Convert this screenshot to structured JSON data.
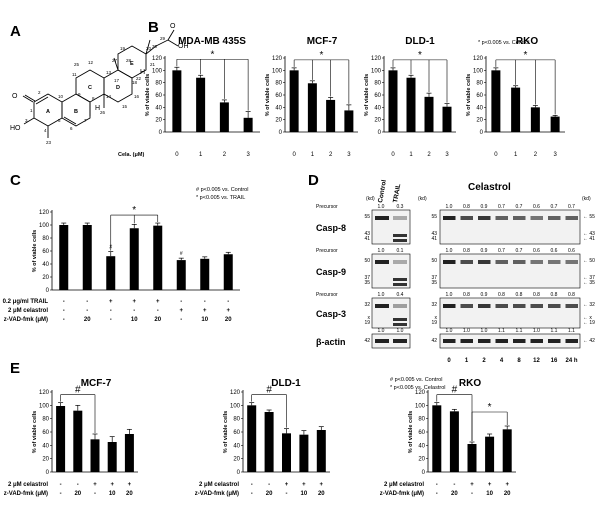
{
  "panels": {
    "a": "A",
    "b": "B",
    "c": "C",
    "d": "D",
    "e": "E"
  },
  "structure": {
    "atoms": [
      "O",
      "OH",
      "HO",
      "O",
      "H",
      "H"
    ],
    "rings": [
      "A",
      "B",
      "C",
      "D",
      "E"
    ],
    "carbons": [
      "1",
      "2",
      "3",
      "4",
      "5",
      "6",
      "7",
      "8",
      "9",
      "10",
      "11",
      "12",
      "13",
      "14",
      "15",
      "16",
      "17",
      "18",
      "19",
      "20",
      "21",
      "22",
      "23",
      "25",
      "26",
      "27",
      "28",
      "29",
      "30"
    ]
  },
  "panel_b": {
    "footnote": "* p<0.005 vs. Control",
    "row_label": "Cela. (μM)",
    "ylabel": "% of viable cells"
  },
  "panel_c": {
    "notes": [
      "# p<0.005 vs. Control",
      "* p<0.005 vs. TRAIL"
    ],
    "ylabel": "% of viable cells",
    "rows": [
      {
        "label": "0.2 μg/ml TRAIL",
        "vals": [
          "-",
          "-",
          "+",
          "+",
          "+",
          "-",
          "-",
          "-"
        ]
      },
      {
        "label": "2 μM celastrol",
        "vals": [
          "-",
          "-",
          "-",
          "-",
          "-",
          "+",
          "+",
          "+"
        ]
      },
      {
        "label": "z-VAD-fmk (μM)",
        "vals": [
          "-",
          "20",
          "-",
          "10",
          "20",
          "-",
          "10",
          "20"
        ]
      }
    ]
  },
  "panel_d": {
    "left_header": [
      "Control",
      "TRAIL"
    ],
    "right_header": "Celastrol",
    "kd": "(kd)",
    "precursor": "Precursor",
    "proteins": [
      {
        "name": "Casp-8",
        "left_q": [
          "1.0",
          "0.3"
        ],
        "right_q": [
          "1.0",
          "0.8",
          "0.9",
          "0.7",
          "0.7",
          "0.6",
          "0.7",
          "0.7"
        ],
        "markers": [
          "55",
          "43",
          "41"
        ]
      },
      {
        "name": "Casp-9",
        "left_q": [
          "1.0",
          "0.1"
        ],
        "right_q": [
          "1.0",
          "0.8",
          "0.9",
          "0.7",
          "0.7",
          "0.6",
          "0.6",
          "0.6"
        ],
        "markers": [
          "50",
          "37",
          "35"
        ]
      },
      {
        "name": "Casp-3",
        "left_q": [
          "1.0",
          "0.4"
        ],
        "right_q": [
          "1.0",
          "0.8",
          "0.9",
          "0.8",
          "0.8",
          "0.8",
          "0.8",
          "0.8"
        ],
        "markers": [
          "32",
          "x",
          "19"
        ]
      },
      {
        "name": "β-actin",
        "left_q": [
          "1.0",
          "1.0"
        ],
        "right_q": [
          "1.0",
          "1.0",
          "1.0",
          "1.1",
          "1.1",
          "1.0",
          "1.1",
          "1.1"
        ],
        "markers": [
          "42"
        ]
      }
    ],
    "timepoints": [
      "0",
      "1",
      "2",
      "4",
      "8",
      "12",
      "16",
      "24 h"
    ]
  },
  "panel_e": {
    "rows": [
      {
        "label": "2 μM celastrol",
        "vals": [
          "-",
          "-",
          "+",
          "+",
          "+"
        ]
      },
      {
        "label": "z-VAD-fmk (μM)",
        "vals": [
          "-",
          "20",
          "-",
          "10",
          "20"
        ]
      }
    ],
    "rko_notes": [
      "# p<0.005 vs. Control",
      "* p<0.005 vs. Celastrol"
    ],
    "ylabel": "% of viable cells"
  },
  "chart_data": [
    {
      "id": "b1",
      "type": "bar",
      "title": "MDA-MB 435S",
      "xlabel": "Cela. (μM)",
      "ylabel": "% of viable cells",
      "categories": [
        "0",
        "1",
        "2",
        "3"
      ],
      "values": [
        100,
        88,
        48,
        23
      ],
      "errors": [
        5,
        4,
        4,
        10
      ],
      "ylim": [
        0,
        120
      ],
      "yticks": [
        0,
        20,
        40,
        60,
        80,
        100,
        120
      ],
      "sig": [
        {
          "mark": "*",
          "from": 0,
          "to": [
            1,
            2,
            3
          ]
        }
      ]
    },
    {
      "id": "b2",
      "type": "bar",
      "title": "MCF-7",
      "xlabel": "Cela. (μM)",
      "ylabel": "% of viable cells",
      "categories": [
        "0",
        "1",
        "2",
        "3"
      ],
      "values": [
        100,
        79,
        52,
        35
      ],
      "errors": [
        4,
        4,
        4,
        9
      ],
      "ylim": [
        0,
        120
      ],
      "yticks": [
        0,
        20,
        40,
        60,
        80,
        100,
        120
      ],
      "sig": [
        {
          "mark": "*",
          "from": 0,
          "to": [
            1,
            2,
            3
          ]
        }
      ]
    },
    {
      "id": "b3",
      "type": "bar",
      "title": "DLD-1",
      "xlabel": "Cela. (μM)",
      "ylabel": "% of viable cells",
      "categories": [
        "0",
        "1",
        "2",
        "3"
      ],
      "values": [
        100,
        88,
        57,
        41
      ],
      "errors": [
        4,
        4,
        6,
        5
      ],
      "ylim": [
        0,
        120
      ],
      "yticks": [
        0,
        20,
        40,
        60,
        80,
        100,
        120
      ],
      "sig": [
        {
          "mark": "*",
          "from": 0,
          "to": [
            1,
            2,
            3
          ]
        }
      ]
    },
    {
      "id": "b4",
      "type": "bar",
      "title": "RKO",
      "xlabel": "Cela. (μM)",
      "ylabel": "% of viable cells",
      "categories": [
        "0",
        "1",
        "2",
        "3"
      ],
      "values": [
        100,
        72,
        40,
        25
      ],
      "errors": [
        4,
        3,
        3,
        2
      ],
      "ylim": [
        0,
        120
      ],
      "yticks": [
        0,
        20,
        40,
        60,
        80,
        100,
        120
      ],
      "sig": [
        {
          "mark": "*",
          "from": 0,
          "to": [
            1,
            2,
            3
          ]
        }
      ]
    },
    {
      "id": "c",
      "type": "bar",
      "title": "",
      "ylabel": "% of viable cells",
      "categories": [
        "1",
        "2",
        "3",
        "4",
        "5",
        "6",
        "7",
        "8"
      ],
      "values": [
        100,
        100,
        52,
        95,
        99,
        46,
        48,
        55
      ],
      "errors": [
        3,
        3,
        7,
        6,
        4,
        3,
        3,
        3
      ],
      "ylim": [
        0,
        120
      ],
      "yticks": [
        0,
        20,
        40,
        60,
        80,
        100,
        120
      ],
      "marks": [
        {
          "bar": 2,
          "mark": "#"
        },
        {
          "bar": 5,
          "mark": "#"
        }
      ],
      "sig": [
        {
          "mark": "*",
          "from": 2,
          "to": [
            3,
            4
          ]
        }
      ]
    },
    {
      "id": "e1",
      "type": "bar",
      "title": "MCF-7",
      "ylabel": "% of viable cells",
      "categories": [
        "1",
        "2",
        "3",
        "4",
        "5"
      ],
      "values": [
        99,
        92,
        49,
        45,
        57
      ],
      "errors": [
        5,
        8,
        8,
        8,
        7
      ],
      "ylim": [
        0,
        120
      ],
      "yticks": [
        0,
        20,
        40,
        60,
        80,
        100,
        120
      ],
      "sig": [
        {
          "mark": "#",
          "from": 0,
          "to": [
            2
          ]
        }
      ]
    },
    {
      "id": "e2",
      "type": "bar",
      "title": "DLD-1",
      "ylabel": "% of viable cells",
      "categories": [
        "1",
        "2",
        "3",
        "4",
        "5"
      ],
      "values": [
        100,
        90,
        58,
        56,
        63
      ],
      "errors": [
        4,
        3,
        7,
        6,
        5
      ],
      "ylim": [
        0,
        120
      ],
      "yticks": [
        0,
        20,
        40,
        60,
        80,
        100,
        120
      ],
      "sig": [
        {
          "mark": "#",
          "from": 0,
          "to": [
            2
          ]
        }
      ]
    },
    {
      "id": "e3",
      "type": "bar",
      "title": "RKO",
      "ylabel": "% of viable cells",
      "categories": [
        "1",
        "2",
        "3",
        "4",
        "5"
      ],
      "values": [
        100,
        91,
        42,
        53,
        64
      ],
      "errors": [
        4,
        3,
        3,
        4,
        5
      ],
      "ylim": [
        0,
        120
      ],
      "yticks": [
        0,
        20,
        40,
        60,
        80,
        100,
        120
      ],
      "sig": [
        {
          "mark": "#",
          "from": 0,
          "to": [
            2
          ]
        },
        {
          "mark": "*",
          "from": 2,
          "to": [
            4
          ]
        }
      ]
    }
  ]
}
